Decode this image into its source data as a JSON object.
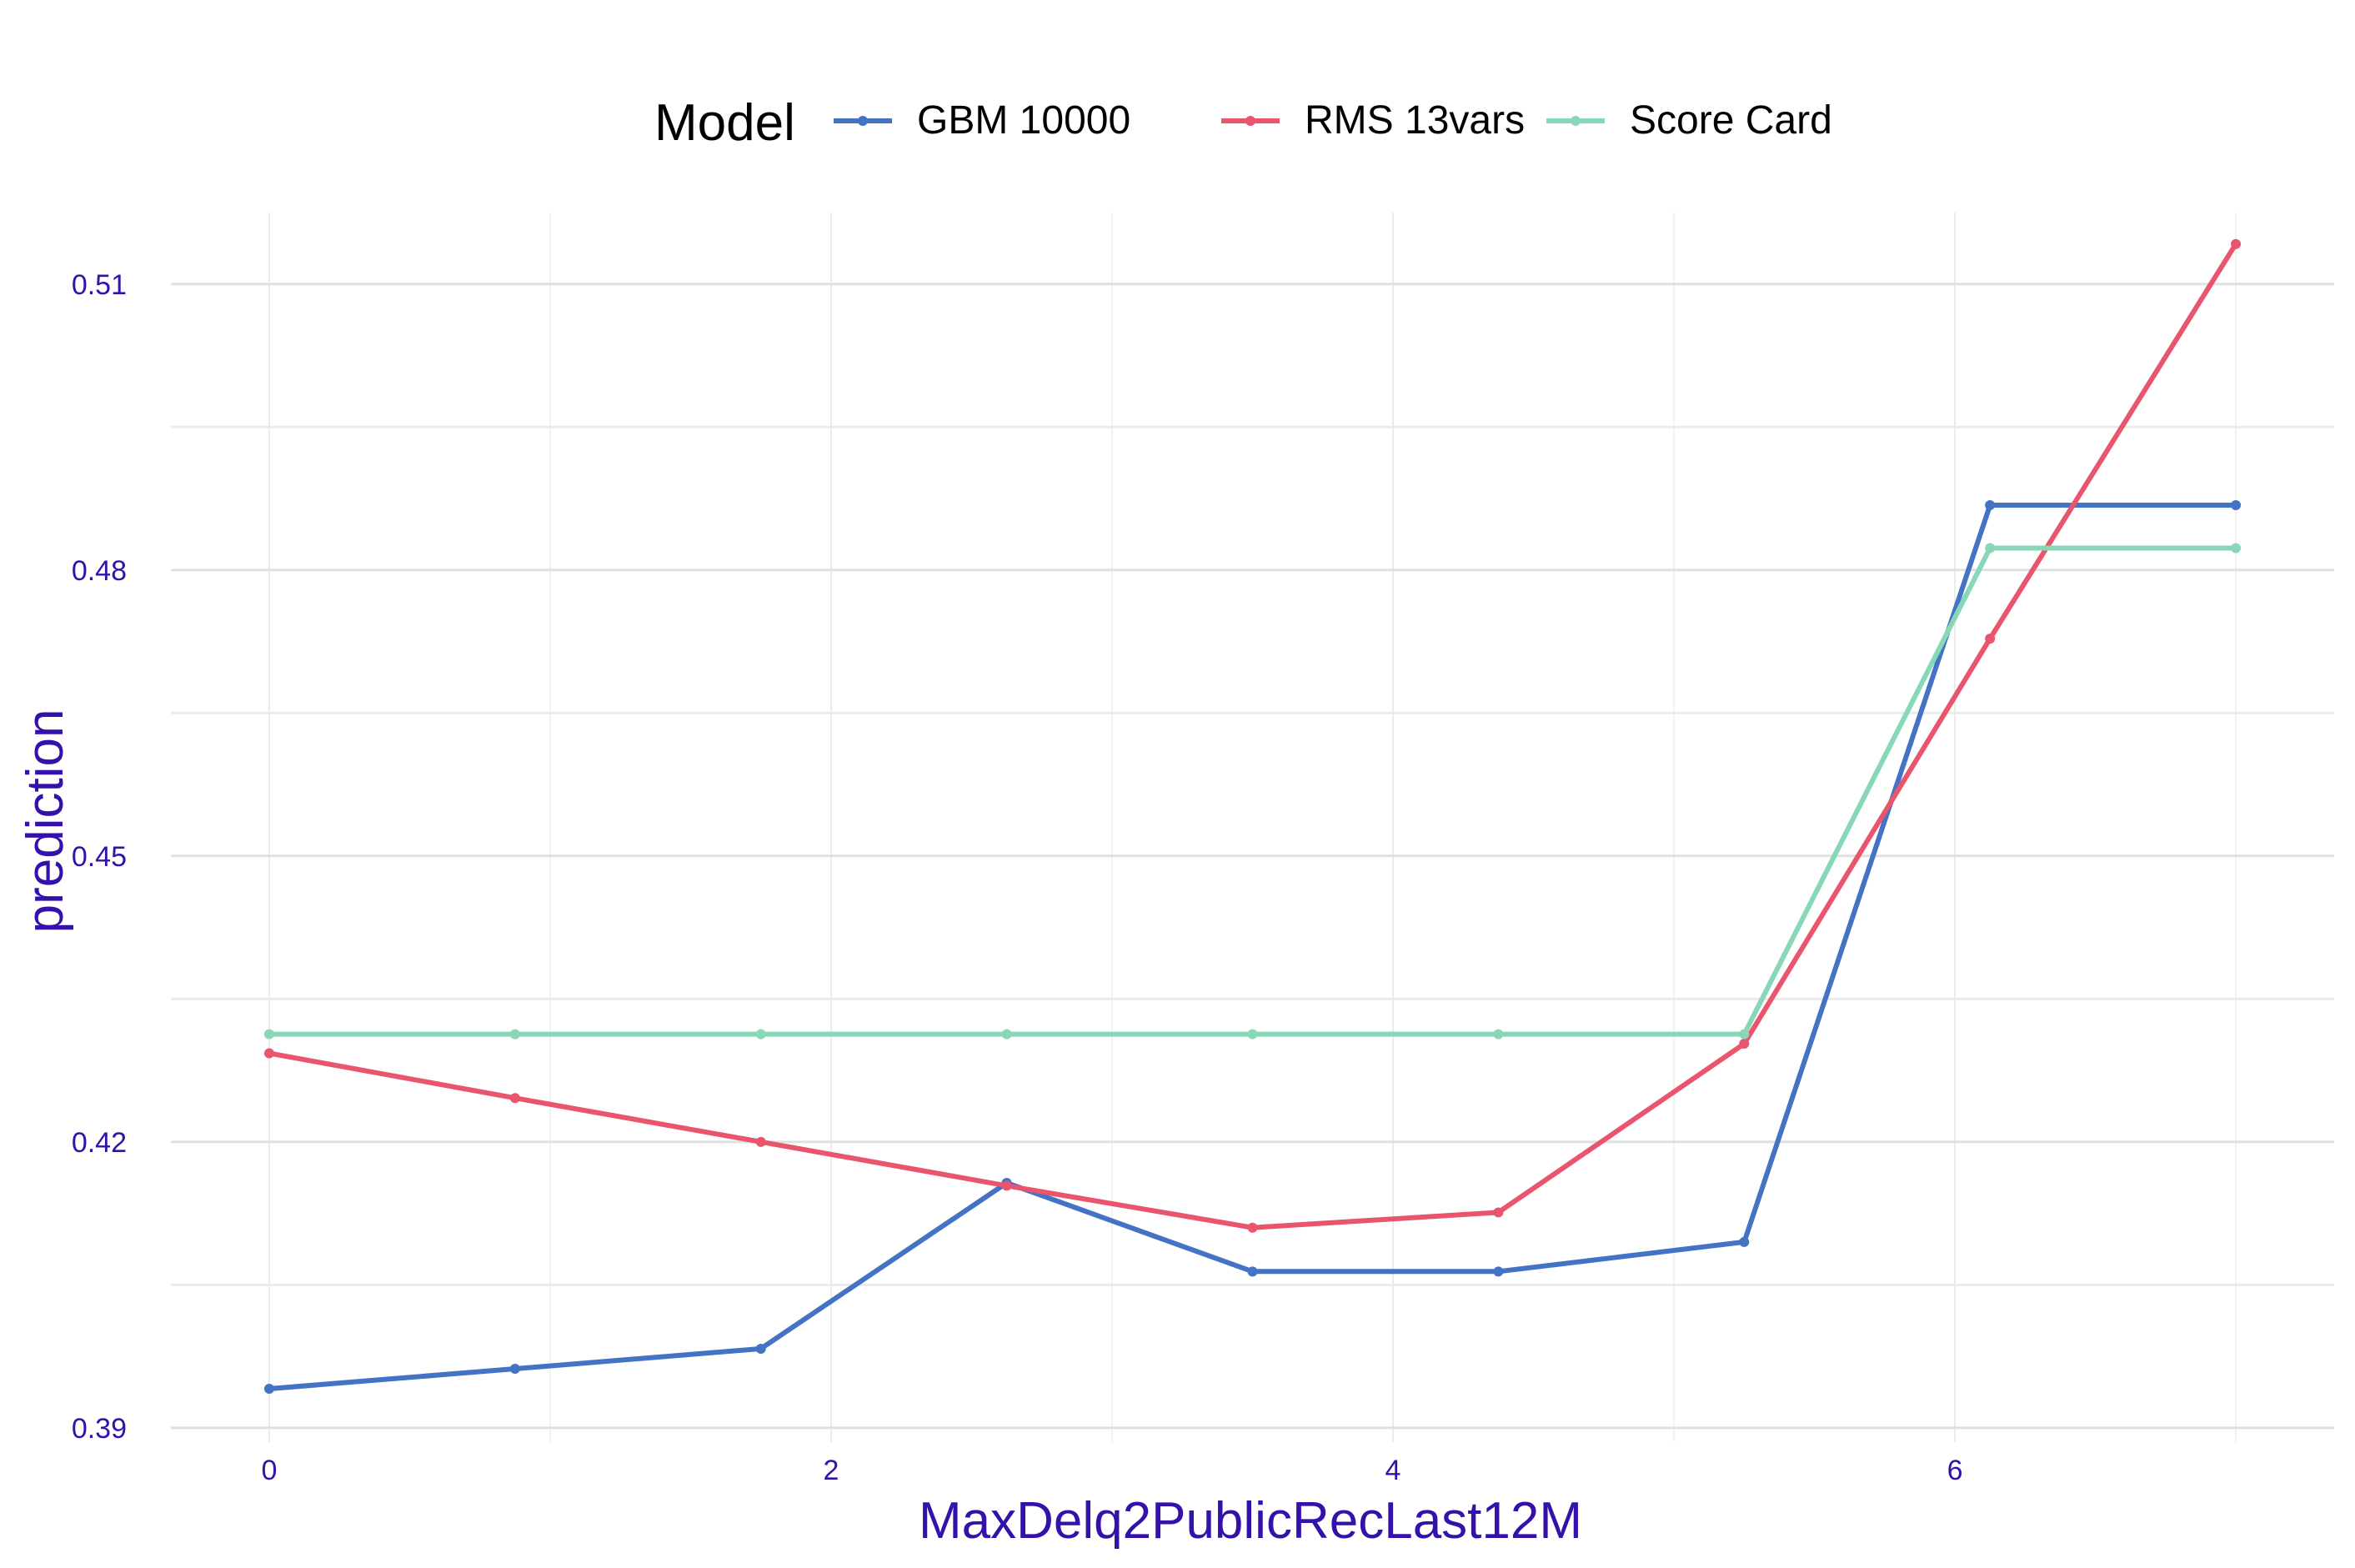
{
  "chart_data": {
    "type": "line",
    "xlabel": "MaxDelq2PublicRecLast12M",
    "ylabel": "prediction",
    "legend_title": "Model",
    "legend_position": "top",
    "xlim": [
      -0.35,
      7.35
    ],
    "ylim": [
      0.3885,
      0.5175
    ],
    "x_ticks": [
      0,
      2,
      4,
      6
    ],
    "x_tick_labels": [
      "0",
      "2",
      "4",
      "6"
    ],
    "y_ticks": [
      0.39,
      0.42,
      0.45,
      0.48,
      0.51
    ],
    "y_tick_labels": [
      "0.39",
      "0.42",
      "0.45",
      "0.48",
      "0.51"
    ],
    "x": [
      0,
      0.875,
      1.75,
      2.625,
      3.5,
      4.375,
      5.25,
      6.125,
      7.0
    ],
    "series": [
      {
        "name": "GBM 10000",
        "color": "#4472c4",
        "values": [
          0.3941,
          0.3962,
          0.3983,
          0.4157,
          0.4064,
          0.4064,
          0.4095,
          0.4868,
          0.4868
        ]
      },
      {
        "name": "RMS 13vars",
        "color": "#e8556d",
        "values": [
          0.4293,
          0.4246,
          0.42,
          0.4154,
          0.411,
          0.4126,
          0.4303,
          0.4728,
          0.5142
        ]
      },
      {
        "name": "Score Card",
        "color": "#88d8b8",
        "values": [
          0.4313,
          0.4313,
          0.4313,
          0.4313,
          0.4313,
          0.4313,
          0.4313,
          0.4823,
          0.4823
        ]
      }
    ],
    "grid": true,
    "tick_color": "#3311aa",
    "axis_label_color": "#3311aa"
  }
}
